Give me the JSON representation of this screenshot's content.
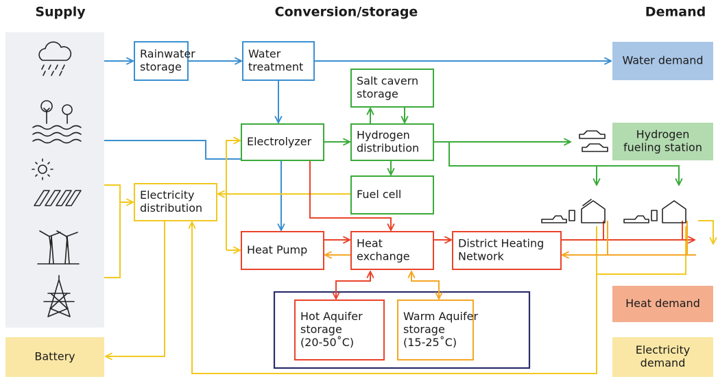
{
  "headers": {
    "supply": "Supply",
    "conversion": "Conversion/storage",
    "demand": "Demand"
  },
  "nodes": [
    {
      "lines": [
        "Rainwater",
        "storage"
      ]
    },
    {
      "lines": [
        "Water",
        "treatment"
      ]
    },
    {
      "lines": [
        "Salt cavern",
        "storage"
      ]
    },
    {
      "lines": [
        "Electrolyzer"
      ]
    },
    {
      "lines": [
        "Hydrogen",
        "distribution"
      ]
    },
    {
      "lines": [
        "Fuel cell"
      ]
    },
    {
      "lines": [
        "Electricity",
        "distribution"
      ]
    },
    {
      "lines": [
        "Heat Pump"
      ]
    },
    {
      "lines": [
        "Heat",
        "exchange"
      ]
    },
    {
      "lines": [
        "District Heating",
        "Network"
      ]
    },
    {
      "lines": [
        "Hot Aquifer",
        "storage",
        "(20-50˚C)"
      ]
    },
    {
      "lines": [
        "Warm Aquifer",
        "storage",
        "(15-25˚C)"
      ]
    },
    {
      "lines": [
        "Water demand"
      ]
    },
    {
      "lines": [
        "Hydrogen",
        "fueling station"
      ]
    },
    {
      "lines": [
        "Heat demand"
      ]
    },
    {
      "lines": [
        "Electricity",
        "demand"
      ]
    },
    {
      "lines": [
        "Battery"
      ]
    }
  ]
}
